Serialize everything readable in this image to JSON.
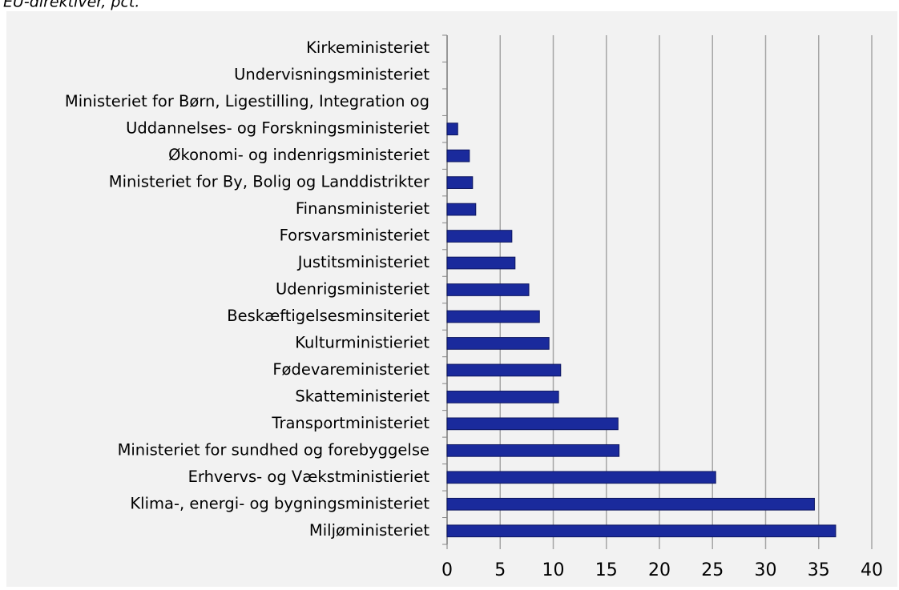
{
  "chart_data": {
    "type": "bar",
    "orientation": "horizontal",
    "title": "EU-direktiver, pct.",
    "categories": [
      "Kirkeministeriet",
      "Undervisningsministeriet",
      "Ministeriet for Børn, Ligestilling, Integration og",
      "Uddannelses- og Forskningsministeriet",
      "Økonomi- og indenrigsministeriet",
      "Ministeriet for By, Bolig og Landdistrikter",
      "Finansministeriet",
      "Forsvarsministeriet",
      "Justitsministeriet",
      "Udenrigsministeriet",
      "Beskæftigelsesminsiteriet",
      "Kulturministieriet",
      "Fødevareministeriet",
      "Skatteministeriet",
      "Transportministeriet",
      "Ministeriet for sundhed og forebyggelse",
      "Erhvervs- og Vækstministieriet",
      "Klima-, energi- og bygningsministeriet",
      "Miljøministeriet"
    ],
    "values": [
      0,
      0,
      0,
      1.0,
      2.1,
      2.4,
      2.7,
      6.1,
      6.4,
      7.7,
      8.7,
      9.6,
      10.7,
      10.5,
      16.1,
      16.2,
      25.3,
      34.6,
      36.6
    ],
    "color": "#1a2a9c",
    "xlim": [
      0,
      40
    ],
    "xticks": [
      0,
      5,
      10,
      15,
      20,
      25,
      30,
      35,
      40
    ],
    "grid": true
  }
}
